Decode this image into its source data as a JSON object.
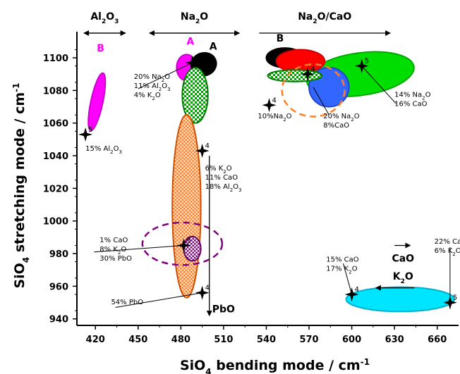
{
  "chart_data": {
    "type": "scatter",
    "xlabel": "SiO",
    "xlabel_sub": "4",
    "xlabel_rest": "  bending mode  /  cm",
    "xlabel_sup": "-1",
    "ylabel": "SiO",
    "ylabel_sub": "4",
    "ylabel_rest": " stretching mode  /  cm",
    "ylabel_sup": "-1",
    "xlim": [
      407,
      675
    ],
    "ylim": [
      936,
      1116
    ],
    "xticks": [
      420,
      450,
      480,
      510,
      540,
      570,
      600,
      630,
      660
    ],
    "yticks": [
      940,
      960,
      980,
      1000,
      1020,
      1040,
      1060,
      1080,
      1100
    ],
    "groups": [
      {
        "label": "Al2O3",
        "text": "Al",
        "sub1": "2",
        "mid": "O",
        "sub2": "3",
        "x_from": 412,
        "x_to": 441
      },
      {
        "label": "Na2O",
        "text": "Na",
        "sub1": "2",
        "mid": "O",
        "sub2": "",
        "x_from": 458,
        "x_to": 521
      },
      {
        "label": "Na2O/CaO",
        "text": "Na",
        "sub1": "2",
        "mid": "O/CaO",
        "sub2": "",
        "x_from": 535,
        "x_to": 627
      }
    ],
    "regions": [
      {
        "label": "B",
        "cx": 421,
        "cy": 1073,
        "rx": 4.2,
        "ry": 18,
        "rot": 12,
        "fill": "#ff00ff",
        "stroke": "#cc00cc",
        "pattern": "solid"
      },
      {
        "label": "A",
        "cx": 484,
        "cy": 1094,
        "rx": 7,
        "ry": 8,
        "rot": 0,
        "fill": "#ff00ff",
        "stroke": "#cc00cc",
        "pattern": "solid"
      },
      {
        "label": "",
        "cx": 496,
        "cy": 1096,
        "rx": 9,
        "ry": 7,
        "rot": -20,
        "fill": "#000000",
        "stroke": "#000000",
        "pattern": "solid"
      },
      {
        "label": "",
        "cx": 490,
        "cy": 1077,
        "rx": 9,
        "ry": 17,
        "rot": 0,
        "fill": "#00a000",
        "stroke": "#007a00",
        "pattern": "check-green"
      },
      {
        "label": "",
        "cx": 484,
        "cy": 1009,
        "rx": 10,
        "ry": 56,
        "rot": 0,
        "fill": "#ff7f27",
        "stroke": "#d05000",
        "pattern": "check-orange"
      },
      {
        "label": "",
        "cx": 488,
        "cy": 983,
        "rx": 6,
        "ry": 7.5,
        "rot": 0,
        "fill": "#800080",
        "stroke": "#600060",
        "pattern": "check-purple"
      },
      {
        "label": "",
        "cx": 481,
        "cy": 986,
        "rx": 28,
        "ry": 13,
        "rot": 0,
        "fill": "none",
        "stroke": "#800080",
        "pattern": "dashed"
      },
      {
        "label": "",
        "cx": 606,
        "cy": 1090,
        "rx": 38,
        "ry": 13,
        "rot": -8,
        "fill": "#00dd00",
        "stroke": "#00aa00",
        "pattern": "solid"
      },
      {
        "label": "B",
        "cx": 553,
        "cy": 1100,
        "rx": 13,
        "ry": 6,
        "rot": 0,
        "fill": "#000000",
        "stroke": "#000000",
        "pattern": "solid"
      },
      {
        "label": "",
        "cx": 564,
        "cy": 1098,
        "rx": 17,
        "ry": 7,
        "rot": 0,
        "fill": "#ff0000",
        "stroke": "#cc0000",
        "pattern": "solid"
      },
      {
        "label": "",
        "cx": 584,
        "cy": 1082,
        "rx": 14,
        "ry": 12,
        "rot": 0,
        "fill": "#3366ff",
        "stroke": "#2244cc",
        "pattern": "solid"
      },
      {
        "label": "",
        "cx": 560,
        "cy": 1089,
        "rx": 19,
        "ry": 3.6,
        "rot": 0,
        "fill": "#00a000",
        "stroke": "#007a00",
        "pattern": "check-green"
      },
      {
        "label": "",
        "cx": 573,
        "cy": 1080,
        "rx": 22,
        "ry": 16,
        "rot": 0,
        "fill": "none",
        "stroke": "#ff7f27",
        "pattern": "dashed-orange"
      },
      {
        "label": "",
        "cx": 634,
        "cy": 952,
        "rx": 38,
        "ry": 7.5,
        "rot": 0,
        "fill": "#00e5ff",
        "stroke": "#00b0cc",
        "pattern": "solid"
      }
    ],
    "points": [
      {
        "x": 413,
        "y": 1053,
        "n": "5"
      },
      {
        "x": 488,
        "y": 1097,
        "n": "5"
      },
      {
        "x": 495,
        "y": 1043,
        "n": "4"
      },
      {
        "x": 482,
        "y": 985,
        "n": "5"
      },
      {
        "x": 495,
        "y": 956,
        "n": "4"
      },
      {
        "x": 542,
        "y": 1071,
        "n": "4"
      },
      {
        "x": 569,
        "y": 1090,
        "n": "4"
      },
      {
        "x": 607,
        "y": 1095,
        "n": "5"
      },
      {
        "x": 600,
        "y": 955,
        "n": "4"
      },
      {
        "x": 669,
        "y": 950,
        "n": "5"
      }
    ],
    "annotations": [
      {
        "lines": [
          "15% Al2O3"
        ],
        "x": 413,
        "y": 1043
      },
      {
        "lines": [
          "20% Na2O",
          "11% Al2O3",
          "4% K2O"
        ],
        "x": 447,
        "y": 1087
      },
      {
        "lines": [
          "6% K2O",
          "11% CaO",
          "18% Al2O3"
        ],
        "x": 497,
        "y": 1031
      },
      {
        "lines": [
          "1% CaO",
          "8% K2O",
          "30% PbO"
        ],
        "x": 423,
        "y": 987
      },
      {
        "lines": [
          "54% PbO"
        ],
        "x": 431,
        "y": 949
      },
      {
        "lines": [
          "10%Na2O"
        ],
        "x": 534,
        "y": 1063
      },
      {
        "lines": [
          "20% Na2O",
          "8%CaO"
        ],
        "x": 580,
        "y": 1063
      },
      {
        "lines": [
          "14% Na2O",
          "16% CaO"
        ],
        "x": 630,
        "y": 1076
      },
      {
        "lines": [
          "15% CaO",
          "17% K2O"
        ],
        "x": 582,
        "y": 975
      },
      {
        "lines": [
          "22% CaO",
          "6% K2O"
        ],
        "x": 658,
        "y": 986
      }
    ],
    "composition_labels": {
      "pbo": "PbO",
      "cao": "CaO",
      "k2o": "K",
      "k2o_sub": "2",
      "k2o_rest": "O"
    }
  }
}
